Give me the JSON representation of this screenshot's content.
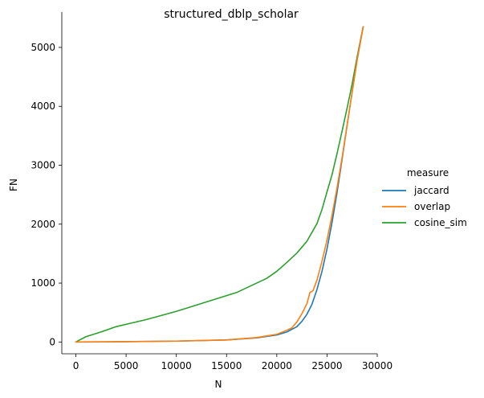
{
  "chart_data": {
    "type": "line",
    "title": "structured_dblp_scholar",
    "xlabel": "N",
    "ylabel": "FN",
    "xlim": [
      -1400,
      30000
    ],
    "ylim": [
      -200,
      5600
    ],
    "xticks": [
      0,
      5000,
      10000,
      15000,
      20000,
      25000,
      30000
    ],
    "yticks": [
      0,
      1000,
      2000,
      3000,
      4000,
      5000
    ],
    "grid": false,
    "legend": {
      "title": "measure",
      "placement": "right"
    },
    "series": [
      {
        "name": "jaccard",
        "color": "#1f77b4",
        "x": [
          0,
          5000,
          10000,
          15000,
          18000,
          20000,
          21000,
          22000,
          22500,
          23000,
          23500,
          24000,
          24500,
          25000,
          25500,
          26000,
          26500,
          27000,
          27500,
          28000,
          28600
        ],
        "y": [
          0,
          5,
          15,
          35,
          70,
          120,
          170,
          260,
          350,
          470,
          640,
          890,
          1200,
          1580,
          2030,
          2540,
          3100,
          3680,
          4240,
          4790,
          5350
        ]
      },
      {
        "name": "overlap",
        "color": "#ff7f0e",
        "x": [
          0,
          5000,
          10000,
          15000,
          18000,
          20000,
          21000,
          21500,
          22000,
          22500,
          23000,
          23300,
          23600,
          24000,
          24500,
          25000,
          25500,
          26000,
          26500,
          27000,
          27500,
          28000,
          28600
        ],
        "y": [
          0,
          5,
          15,
          35,
          75,
          130,
          200,
          240,
          340,
          480,
          650,
          840,
          870,
          1050,
          1370,
          1730,
          2150,
          2620,
          3130,
          3680,
          4240,
          4790,
          5350
        ]
      },
      {
        "name": "cosine_sim",
        "color": "#2ca02c",
        "x": [
          0,
          1000,
          2500,
          4000,
          5500,
          7000,
          8500,
          10000,
          11500,
          13000,
          14500,
          16000,
          17000,
          18000,
          19000,
          20000,
          21000,
          22000,
          23000,
          23500,
          24000,
          24500,
          25000,
          25500,
          26000,
          26500,
          27000,
          27500,
          28000,
          28600
        ],
        "y": [
          0,
          90,
          170,
          260,
          320,
          380,
          450,
          520,
          600,
          680,
          760,
          840,
          920,
          1000,
          1080,
          1200,
          1350,
          1510,
          1710,
          1860,
          2010,
          2250,
          2550,
          2840,
          3200,
          3580,
          3970,
          4380,
          4840,
          5350
        ]
      }
    ]
  }
}
